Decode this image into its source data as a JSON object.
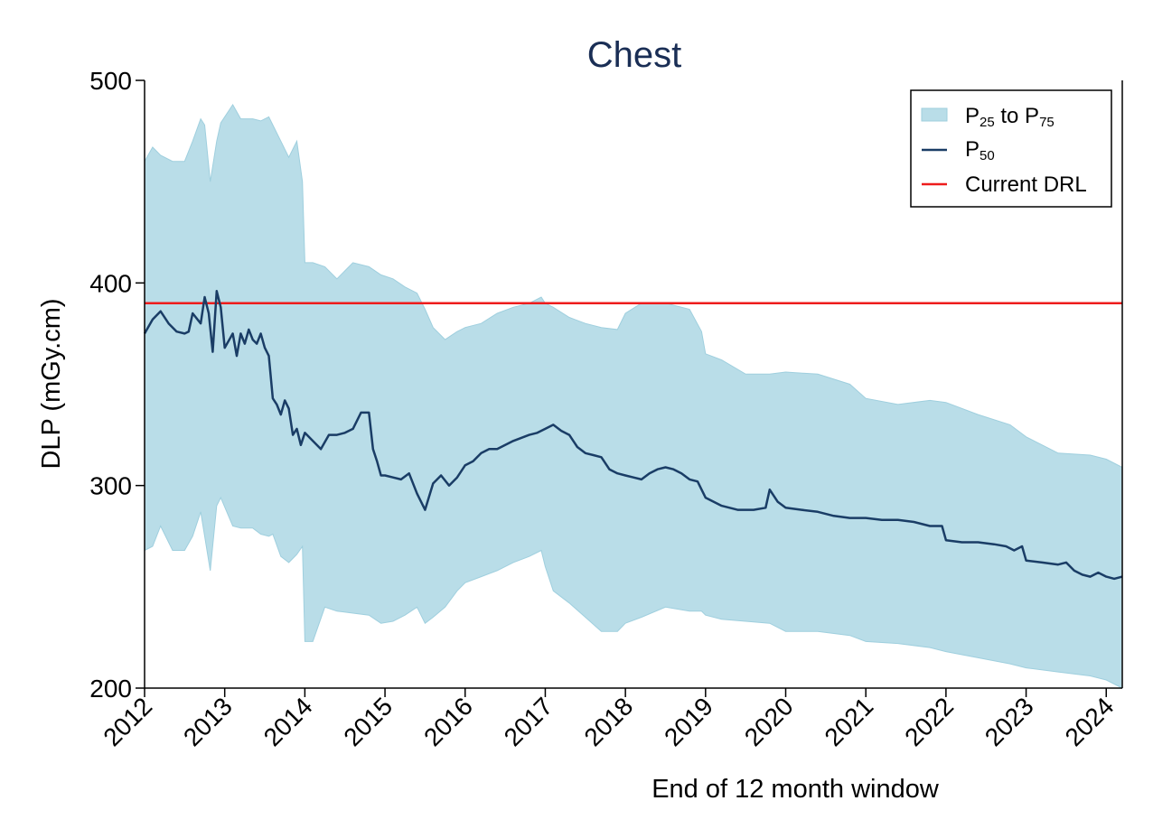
{
  "colors": {
    "band": "#b9dde8",
    "band_edge": "#9fcfde",
    "median": "#1a3d66",
    "drl": "#ee1c1c",
    "title": "#1a2e55",
    "axis": "#000000"
  },
  "chart_data": {
    "type": "area",
    "title": "Chest",
    "xlabel": "End of 12 month window",
    "ylabel": "DLP (mGy.cm)",
    "xlim": [
      2012.0,
      2024.2
    ],
    "ylim": [
      200,
      500
    ],
    "x_ticks": [
      "2012",
      "2013",
      "2014",
      "2015",
      "2016",
      "2017",
      "2018",
      "2019",
      "2020",
      "2021",
      "2022",
      "2023",
      "2024"
    ],
    "y_ticks": [
      "200",
      "300",
      "400",
      "500"
    ],
    "grid": false,
    "legend_position": "top-right",
    "legend": [
      {
        "name": "P",
        "sub1": "25",
        "mid": " to P",
        "sub2": "75",
        "kind": "band"
      },
      {
        "name": "P",
        "sub1": "50",
        "mid": "",
        "sub2": "",
        "kind": "median"
      },
      {
        "name": "Current DRL",
        "sub1": "",
        "mid": "",
        "sub2": "",
        "kind": "drl"
      }
    ],
    "drl": 390,
    "series": [
      {
        "name": "P25 to P75",
        "type": "band",
        "x": [
          2012.0,
          2012.1,
          2012.2,
          2012.35,
          2012.5,
          2012.6,
          2012.7,
          2012.75,
          2012.82,
          2012.9,
          2012.95,
          2013.1,
          2013.2,
          2013.35,
          2013.45,
          2013.55,
          2013.6,
          2013.7,
          2013.8,
          2013.9,
          2013.97,
          2014.0,
          2014.1,
          2014.25,
          2014.4,
          2014.6,
          2014.8,
          2014.95,
          2015.1,
          2015.25,
          2015.4,
          2015.5,
          2015.6,
          2015.75,
          2015.9,
          2016.0,
          2016.2,
          2016.4,
          2016.6,
          2016.8,
          2016.95,
          2017.0,
          2017.1,
          2017.3,
          2017.5,
          2017.7,
          2017.9,
          2018.0,
          2018.2,
          2018.5,
          2018.8,
          2018.95,
          2019.0,
          2019.2,
          2019.5,
          2019.8,
          2020.0,
          2020.4,
          2020.8,
          2021.0,
          2021.4,
          2021.8,
          2022.0,
          2022.4,
          2022.8,
          2023.0,
          2023.4,
          2023.8,
          2024.0,
          2024.2
        ],
        "upper": [
          460,
          467,
          463,
          460,
          460,
          470,
          481,
          478,
          450,
          470,
          479,
          488,
          481,
          481,
          480,
          482,
          478,
          470,
          462,
          470,
          450,
          410,
          410,
          408,
          402,
          410,
          408,
          404,
          402,
          398,
          395,
          387,
          378,
          372,
          376,
          378,
          380,
          385,
          388,
          390,
          393,
          390,
          388,
          383,
          380,
          378,
          377,
          385,
          390,
          390,
          387,
          376,
          365,
          362,
          355,
          355,
          356,
          355,
          350,
          343,
          340,
          342,
          341,
          335,
          330,
          324,
          316,
          315,
          313,
          309
        ],
        "lower": [
          268,
          270,
          280,
          268,
          268,
          275,
          287,
          275,
          258,
          290,
          294,
          280,
          279,
          279,
          276,
          275,
          276,
          265,
          262,
          266,
          270,
          223,
          223,
          240,
          238,
          237,
          236,
          232,
          233,
          236,
          240,
          232,
          235,
          240,
          248,
          252,
          255,
          258,
          262,
          265,
          268,
          260,
          248,
          242,
          235,
          228,
          228,
          232,
          235,
          240,
          238,
          238,
          236,
          234,
          233,
          232,
          228,
          228,
          226,
          223,
          222,
          220,
          218,
          215,
          212,
          210,
          208,
          206,
          204,
          200
        ]
      },
      {
        "name": "P50",
        "type": "line",
        "x": [
          2012.0,
          2012.1,
          2012.2,
          2012.3,
          2012.4,
          2012.5,
          2012.55,
          2012.6,
          2012.7,
          2012.75,
          2012.8,
          2012.85,
          2012.9,
          2012.95,
          2013.0,
          2013.1,
          2013.15,
          2013.2,
          2013.25,
          2013.3,
          2013.35,
          2013.4,
          2013.45,
          2013.5,
          2013.55,
          2013.6,
          2013.65,
          2013.7,
          2013.75,
          2013.8,
          2013.85,
          2013.9,
          2013.95,
          2014.0,
          2014.1,
          2014.2,
          2014.3,
          2014.4,
          2014.5,
          2014.6,
          2014.7,
          2014.8,
          2014.85,
          2014.9,
          2014.95,
          2015.0,
          2015.1,
          2015.2,
          2015.3,
          2015.4,
          2015.5,
          2015.6,
          2015.7,
          2015.8,
          2015.9,
          2016.0,
          2016.1,
          2016.2,
          2016.3,
          2016.4,
          2016.6,
          2016.8,
          2016.9,
          2017.0,
          2017.1,
          2017.2,
          2017.3,
          2017.4,
          2017.5,
          2017.6,
          2017.7,
          2017.8,
          2017.9,
          2018.0,
          2018.1,
          2018.2,
          2018.3,
          2018.4,
          2018.5,
          2018.6,
          2018.7,
          2018.8,
          2018.9,
          2019.0,
          2019.2,
          2019.4,
          2019.6,
          2019.75,
          2019.8,
          2019.9,
          2020.0,
          2020.2,
          2020.4,
          2020.6,
          2020.8,
          2021.0,
          2021.2,
          2021.4,
          2021.6,
          2021.8,
          2021.95,
          2022.0,
          2022.2,
          2022.4,
          2022.6,
          2022.75,
          2022.85,
          2022.95,
          2023.0,
          2023.2,
          2023.4,
          2023.5,
          2023.6,
          2023.7,
          2023.8,
          2023.9,
          2024.0,
          2024.1,
          2024.2
        ],
        "values": [
          375,
          382,
          386,
          380,
          376,
          375,
          376,
          385,
          380,
          393,
          385,
          366,
          396,
          388,
          368,
          375,
          364,
          375,
          370,
          377,
          372,
          370,
          375,
          368,
          364,
          343,
          340,
          335,
          342,
          338,
          325,
          328,
          320,
          326,
          322,
          318,
          325,
          325,
          326,
          328,
          336,
          336,
          318,
          312,
          305,
          305,
          304,
          303,
          306,
          296,
          288,
          301,
          305,
          300,
          304,
          310,
          312,
          316,
          318,
          318,
          322,
          325,
          326,
          328,
          330,
          327,
          325,
          319,
          316,
          315,
          314,
          308,
          306,
          305,
          304,
          303,
          306,
          308,
          309,
          308,
          306,
          303,
          302,
          294,
          290,
          288,
          288,
          289,
          298,
          292,
          289,
          288,
          287,
          285,
          284,
          284,
          283,
          283,
          282,
          280,
          280,
          273,
          272,
          272,
          271,
          270,
          268,
          270,
          263,
          262,
          261,
          262,
          258,
          256,
          255,
          257,
          255,
          254,
          255
        ]
      }
    ]
  }
}
